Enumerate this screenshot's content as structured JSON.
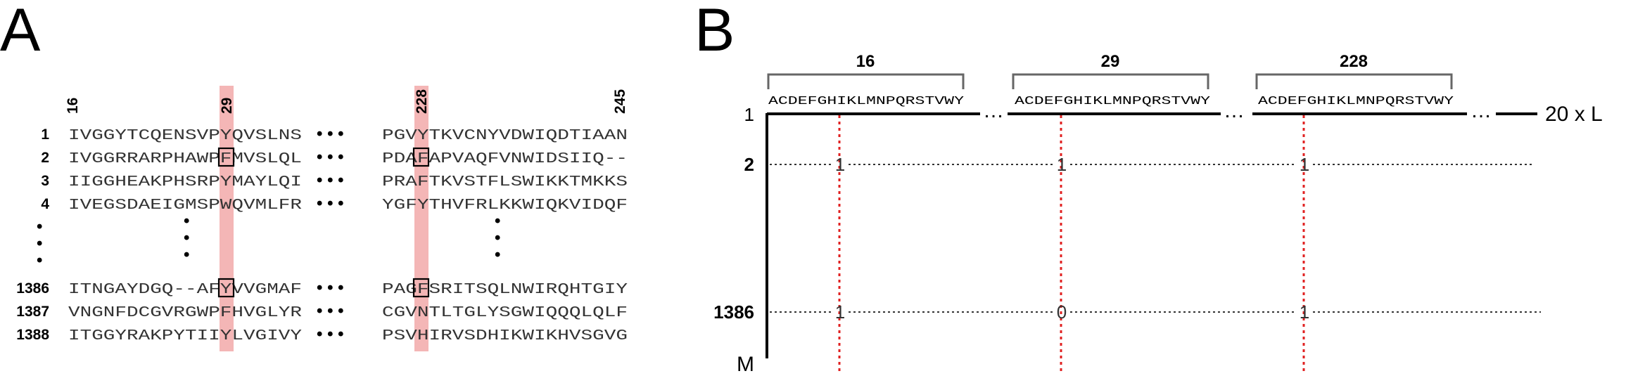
{
  "panelA": {
    "label": "A",
    "left_positions": [
      "16",
      "29"
    ],
    "right_positions": [
      "228",
      "245"
    ],
    "rows": [
      {
        "label": "1",
        "left": "IVGGYTCQENSVPYQVSLNS",
        "right": "PGVYTKVCNYVDWIQDTIAAN"
      },
      {
        "label": "2",
        "left": "IVGGRRARPHAWPFMVSLQL",
        "right": "PDAFAPVAQFVNWIDSIIQ--"
      },
      {
        "label": "3",
        "left": "IIGGHEAKPHSRPYMAYLQI",
        "right": "PRAFTKVSTFLSWIKKTMKKS"
      },
      {
        "label": "4",
        "left": "IVEGSDAEIGMSPWQVMLFR",
        "right": "YGFYTHVFRLKKWIQKVIDQF"
      },
      {
        "label": "1386",
        "left": "ITNGAYDGQ--AFYVVGMAF",
        "right": "PAGFSRITSQLNWIRQHTGIY"
      },
      {
        "label": "1387",
        "left": "VNGNFDCGVRGWPFHVGLYR",
        "right": "CGVNTLTGLYSGWIQQQLQLF"
      },
      {
        "label": "1388",
        "left": "ITGGYRAKPYTIIYLVGIVY",
        "right": "PSVHIRVSDHIKWIKHVSGVG"
      }
    ],
    "gap_dots": "• • •",
    "vertical_dot": "•"
  },
  "panelB": {
    "label": "B",
    "groups": [
      {
        "label": "16",
        "alphabet": "ACDEFGHIKLMNPQRSTVWY"
      },
      {
        "label": "29",
        "alphabet": "ACDEFGHIKLMNPQRSTVWY"
      },
      {
        "label": "228",
        "alphabet": "ACDEFGHIKLMNPQRSTVWY"
      }
    ],
    "row_labels": [
      "1",
      "2",
      "1386",
      "M"
    ],
    "ellipsis": "…",
    "axis_end_label": "20 x L",
    "rows": [
      {
        "label": "2",
        "values": [
          "1",
          "1",
          "1"
        ]
      },
      {
        "label": "1386",
        "values": [
          "1",
          "0",
          "1"
        ]
      }
    ],
    "colors": {
      "highlight": "#f4b6b6",
      "red_line": "#e02020",
      "bracket": "#666666"
    }
  }
}
